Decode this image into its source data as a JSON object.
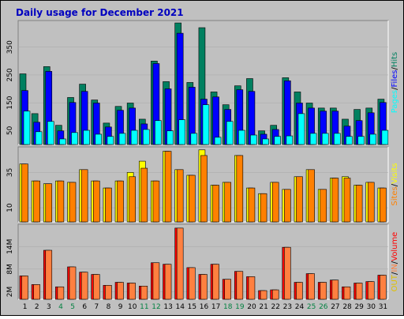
{
  "chart_data": [
    {
      "type": "bar",
      "title": "Daily usage for December 2021",
      "legend_separator": "/",
      "ylim": [
        0,
        440
      ],
      "yticks": [
        50,
        150,
        250,
        350
      ],
      "series": [
        {
          "name": "Hits",
          "color": "#008060",
          "values": [
            254,
            111,
            280,
            69,
            169,
            217,
            160,
            77,
            137,
            149,
            91,
            300,
            226,
            437,
            223,
            420,
            189,
            143,
            211,
            237,
            49,
            69,
            240,
            189,
            149,
            131,
            131,
            91,
            126,
            131,
            163
          ]
        },
        {
          "name": "Files",
          "color": "#0000ff",
          "values": [
            194,
            80,
            263,
            49,
            151,
            191,
            149,
            63,
            123,
            131,
            74,
            291,
            200,
            400,
            206,
            163,
            171,
            126,
            197,
            191,
            37,
            54,
            229,
            149,
            131,
            120,
            120,
            66,
            86,
            114,
            151
          ]
        },
        {
          "name": "Pages",
          "color": "#00ffff",
          "values": [
            120,
            46,
            83,
            20,
            43,
            51,
            37,
            29,
            40,
            51,
            54,
            86,
            49,
            89,
            40,
            143,
            26,
            83,
            51,
            34,
            20,
            29,
            31,
            111,
            40,
            40,
            40,
            29,
            29,
            37,
            51
          ]
        }
      ]
    },
    {
      "type": "bar",
      "legend_separator": "/",
      "ylim": [
        0,
        52
      ],
      "yticks": [
        10,
        35
      ],
      "series": [
        {
          "name": "Visits",
          "color": "#ffff00",
          "values": [
            41,
            29,
            27,
            29,
            28,
            37,
            29,
            24,
            29,
            35,
            43,
            29,
            50,
            37,
            33,
            51,
            26,
            28,
            47,
            24,
            20,
            28,
            23,
            32,
            37,
            23,
            31,
            32,
            26,
            28,
            24
          ]
        },
        {
          "name": "Sites",
          "color": "#ff8000",
          "values": [
            41,
            29,
            27,
            29,
            28,
            37,
            29,
            24,
            29,
            32,
            38,
            29,
            50,
            37,
            33,
            47,
            26,
            28,
            47,
            24,
            20,
            28,
            23,
            32,
            37,
            23,
            31,
            31,
            26,
            28,
            24
          ]
        }
      ]
    },
    {
      "type": "bar",
      "legend_separator": "/",
      "ylim": [
        0,
        19.5
      ],
      "yticks": [
        {
          "value": 2,
          "label": "2M"
        },
        {
          "value": 8,
          "label": "8M"
        },
        {
          "value": 14,
          "label": "14M"
        }
      ],
      "categories": [
        "1",
        "2",
        "3",
        "4",
        "5",
        "6",
        "7",
        "8",
        "9",
        "10",
        "11",
        "12",
        "13",
        "14",
        "15",
        "16",
        "17",
        "18",
        "19",
        "20",
        "21",
        "22",
        "23",
        "24",
        "25",
        "26",
        "27",
        "28",
        "29",
        "30",
        "31"
      ],
      "weekend_categories": [
        "4",
        "5",
        "11",
        "12",
        "18",
        "19",
        "25",
        "26"
      ],
      "weekend_color": "#008040",
      "series": [
        {
          "name": "Volume",
          "color": "#ff0000",
          "values": [
            6.2,
            3.9,
            13,
            3.3,
            8.6,
            7.2,
            6.6,
            3.7,
            4.5,
            4.3,
            3.5,
            9.7,
            9.3,
            18.9,
            8.4,
            6.6,
            9.3,
            5.3,
            7.4,
            6.0,
            2.3,
            2.5,
            13.8,
            4.5,
            6.8,
            4.5,
            5.1,
            3.3,
            4.3,
            4.7,
            6.4
          ]
        },
        {
          "name": "IN",
          "color": "#ff8040",
          "values": [
            6.2,
            3.9,
            13,
            3.3,
            8.6,
            7.2,
            6.6,
            3.7,
            4.5,
            4.3,
            3.5,
            9.7,
            9.3,
            18.9,
            8.4,
            6.6,
            9.3,
            5.3,
            7.4,
            6.0,
            2.3,
            2.5,
            13.8,
            4.5,
            6.8,
            4.5,
            5.1,
            3.3,
            4.3,
            4.7,
            6.4
          ]
        }
      ],
      "legend_only": [
        {
          "name": "OUT",
          "color": "#e0c000"
        }
      ]
    }
  ]
}
